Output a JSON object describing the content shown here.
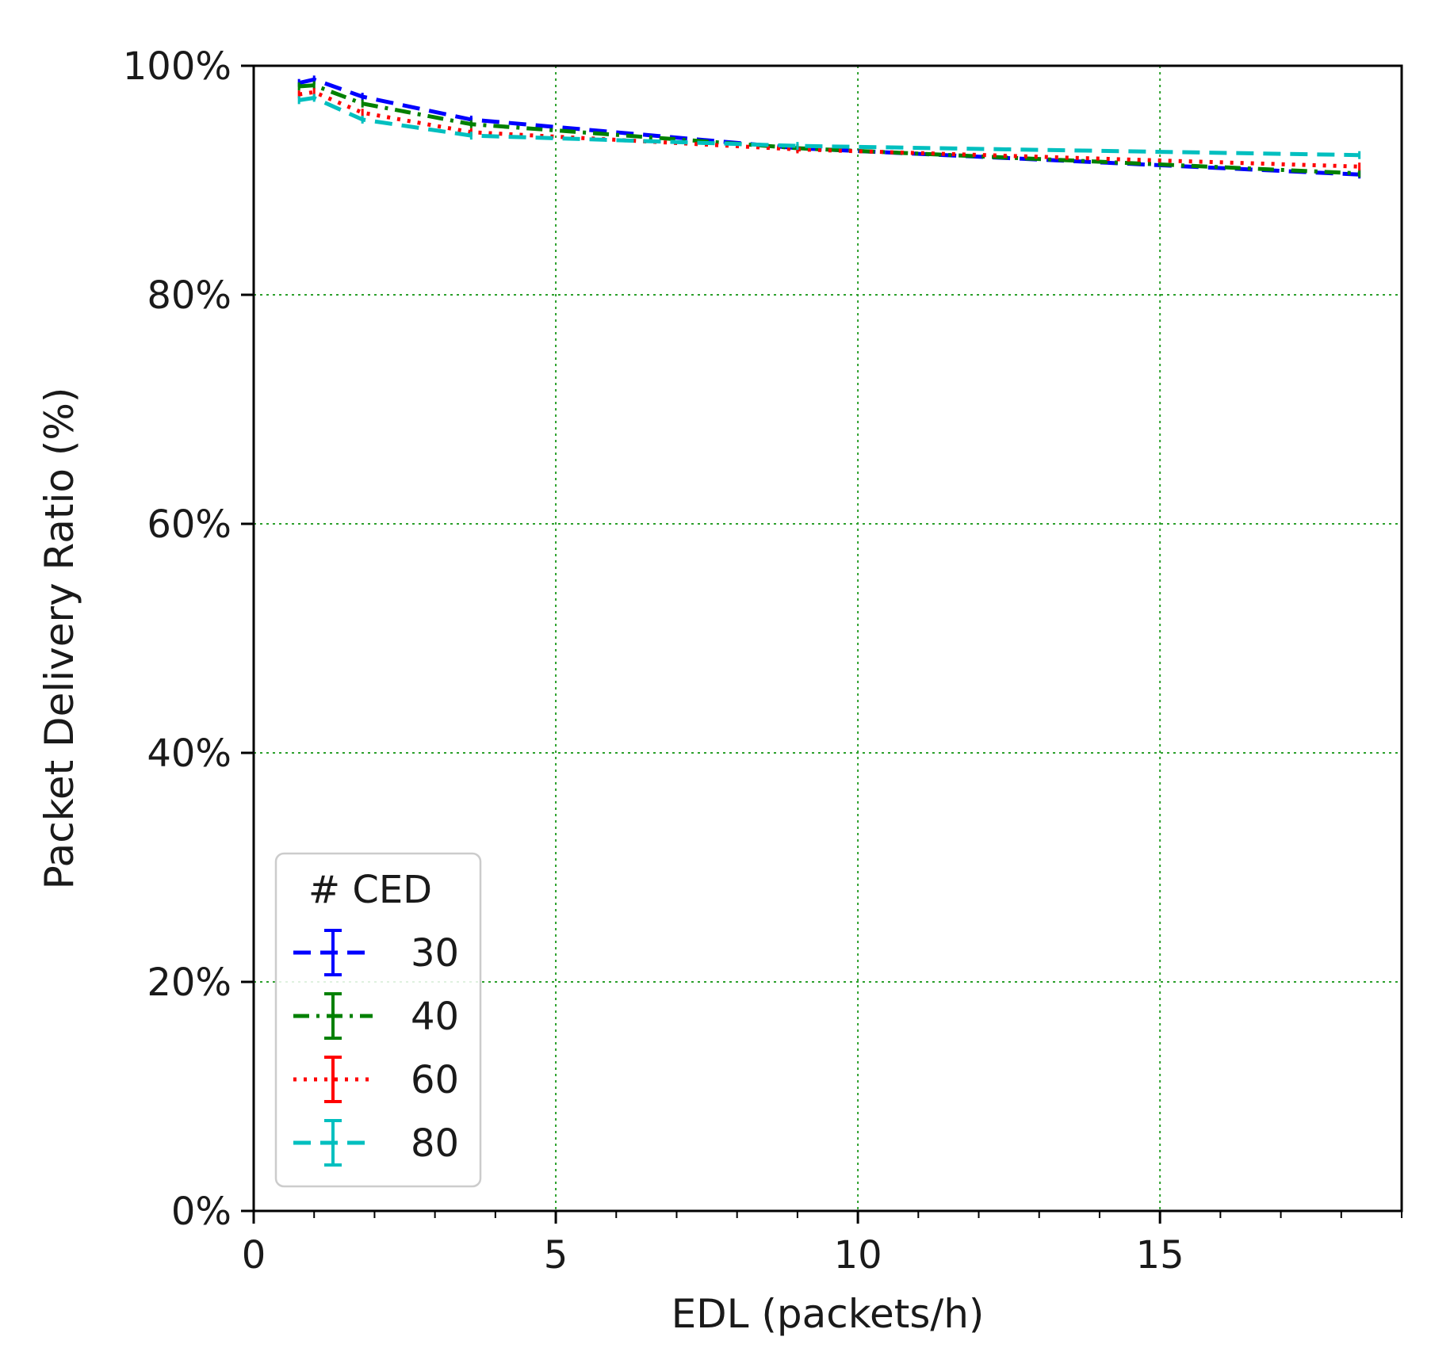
{
  "chart_data": {
    "type": "line",
    "title": "",
    "xlabel": "EDL (packets/h)",
    "ylabel": "Packet Delivery Ratio (%)",
    "xlim": [
      0,
      19
    ],
    "ylim": [
      0,
      100
    ],
    "x_ticks": [
      0,
      5,
      10,
      15
    ],
    "x_tick_labels": [
      "0",
      "5",
      "10",
      "15"
    ],
    "y_ticks": [
      0,
      20,
      40,
      60,
      80,
      100
    ],
    "y_tick_labels": [
      "0%",
      "20%",
      "40%",
      "60%",
      "80%",
      "100%"
    ],
    "grid": true,
    "grid_color": "#2ca02c",
    "legend": {
      "title": "# CED",
      "placement": "lower-left"
    },
    "x": [
      0.75,
      1,
      1.8,
      3.6,
      9,
      18.3
    ],
    "series": [
      {
        "name": "30",
        "color": "#0000ff",
        "style": "dashed",
        "values": [
          98.5,
          98.8,
          97.3,
          95.3,
          92.8,
          90.5
        ]
      },
      {
        "name": "40",
        "color": "#008000",
        "style": "dashdot",
        "values": [
          98.2,
          98.3,
          96.7,
          94.9,
          92.8,
          90.6
        ]
      },
      {
        "name": "60",
        "color": "#ff0000",
        "style": "dotted",
        "values": [
          97.5,
          97.7,
          95.9,
          94.2,
          92.7,
          91.2
        ]
      },
      {
        "name": "80",
        "color": "#00bfbf",
        "style": "dashed",
        "values": [
          97.0,
          97.2,
          95.3,
          93.9,
          93.0,
          92.2
        ]
      }
    ]
  }
}
